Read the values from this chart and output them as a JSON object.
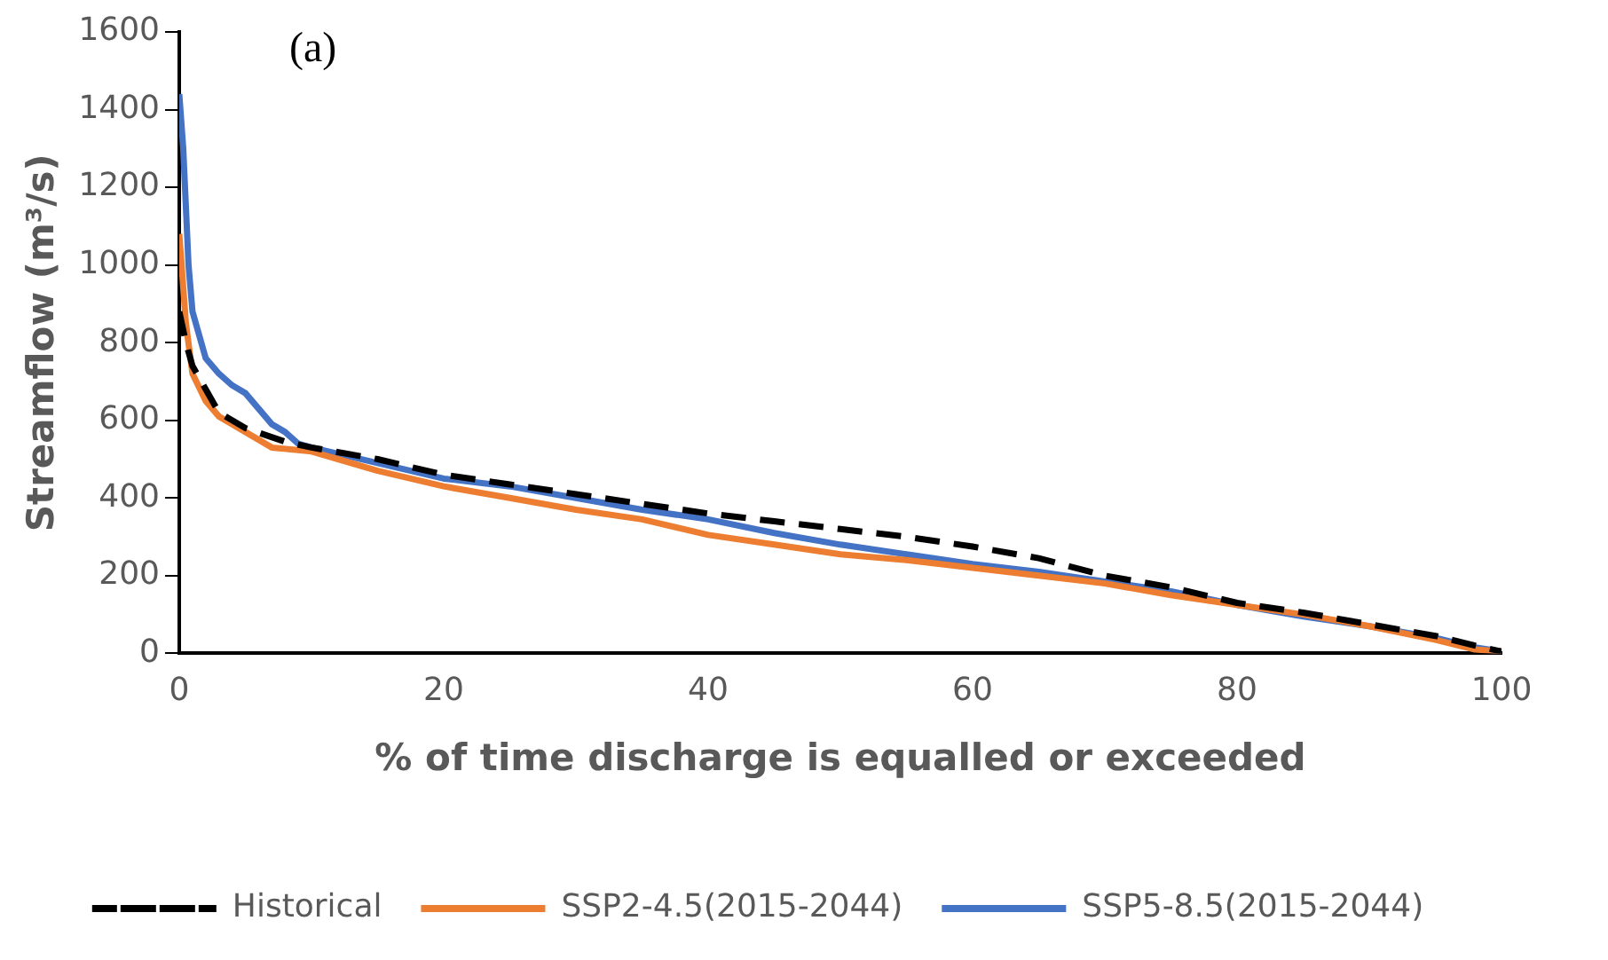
{
  "chart_data": {
    "type": "line",
    "xlabel": "% of time discharge is equalled or exceeded",
    "ylabel": "Streamflow (m³/s)",
    "annotations": [
      "(a)"
    ],
    "xlim": [
      0,
      100
    ],
    "xticks": [
      0,
      20,
      40,
      60,
      80,
      100
    ],
    "ylim": [
      0,
      1600
    ],
    "yticks": [
      0,
      200,
      400,
      600,
      800,
      1000,
      1200,
      1400,
      1600
    ],
    "grid": false,
    "legend": "bottom",
    "marker": "none",
    "series": [
      {
        "name": "Historical",
        "color": "#000000",
        "line_style": "dashed",
        "x": [
          0,
          0.5,
          1,
          2,
          3,
          5,
          8,
          10,
          15,
          20,
          25,
          30,
          35,
          40,
          45,
          50,
          55,
          60,
          65,
          70,
          75,
          80,
          85,
          90,
          95,
          98,
          100
        ],
        "values": [
          880,
          800,
          740,
          680,
          620,
          580,
          545,
          530,
          500,
          460,
          435,
          410,
          385,
          360,
          340,
          320,
          300,
          275,
          245,
          200,
          170,
          130,
          105,
          75,
          45,
          20,
          5
        ]
      },
      {
        "name": "SSP2-4.5(2015-2044)",
        "color": "#ed7d31",
        "line_style": "solid",
        "x": [
          0,
          0.5,
          1,
          2,
          3,
          5,
          7,
          10,
          15,
          20,
          25,
          30,
          35,
          40,
          45,
          50,
          55,
          60,
          65,
          70,
          75,
          80,
          85,
          90,
          95,
          98,
          100
        ],
        "values": [
          1080,
          850,
          720,
          650,
          610,
          570,
          530,
          520,
          470,
          430,
          400,
          370,
          345,
          305,
          280,
          255,
          240,
          220,
          200,
          180,
          150,
          125,
          100,
          70,
          35,
          10,
          5
        ]
      },
      {
        "name": "SSP5-8.5(2015-2044)",
        "color": "#4472c4",
        "line_style": "solid",
        "x": [
          0,
          0.3,
          0.7,
          1,
          2,
          3,
          4,
          5,
          6,
          7,
          8,
          9,
          10,
          15,
          20,
          25,
          30,
          35,
          40,
          45,
          50,
          55,
          60,
          65,
          70,
          75,
          80,
          85,
          90,
          95,
          98,
          100
        ],
        "values": [
          1440,
          1300,
          1000,
          880,
          760,
          720,
          690,
          670,
          630,
          590,
          570,
          540,
          530,
          490,
          450,
          430,
          400,
          370,
          345,
          310,
          280,
          255,
          230,
          210,
          185,
          160,
          125,
          95,
          70,
          40,
          15,
          5
        ]
      }
    ]
  }
}
